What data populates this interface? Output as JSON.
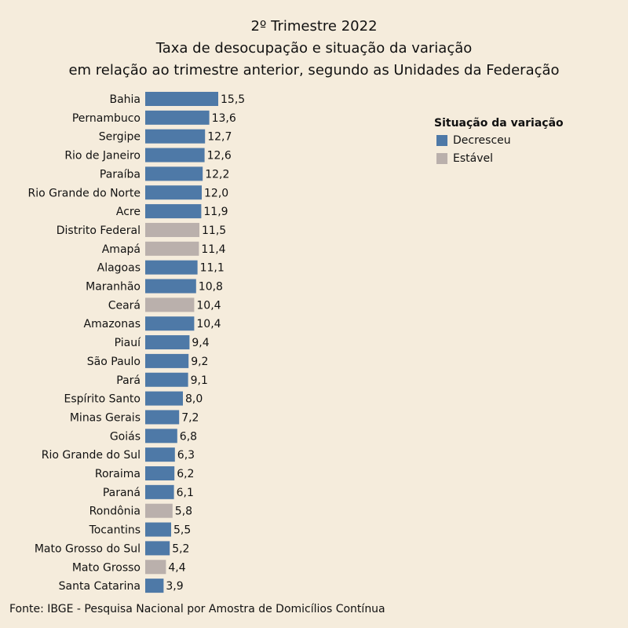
{
  "chart_data": {
    "type": "bar",
    "orientation": "horizontal",
    "title": "2º Trimestre 2022",
    "subtitle_lines": [
      "Taxa de desocupação e situação da variação",
      "em relação ao trimestre anterior, segundo as Unidades da Federação"
    ],
    "categories": [
      "Bahia",
      "Pernambuco",
      "Sergipe",
      "Rio de Janeiro",
      "Paraíba",
      "Rio Grande do Norte",
      "Acre",
      "Distrito Federal",
      "Amapá",
      "Alagoas",
      "Maranhão",
      "Ceará",
      "Amazonas",
      "Piauí",
      "São Paulo",
      "Pará",
      "Espírito Santo",
      "Minas Gerais",
      "Goiás",
      "Rio Grande do Sul",
      "Roraima",
      "Paraná",
      "Rondônia",
      "Tocantins",
      "Mato Grosso do Sul",
      "Mato Grosso",
      "Santa Catarina"
    ],
    "values": [
      15.5,
      13.6,
      12.7,
      12.6,
      12.2,
      12.0,
      11.9,
      11.5,
      11.4,
      11.1,
      10.8,
      10.4,
      10.4,
      9.4,
      9.2,
      9.1,
      8.0,
      7.2,
      6.8,
      6.3,
      6.2,
      6.1,
      5.8,
      5.5,
      5.2,
      4.4,
      3.9
    ],
    "labels": [
      "15,5",
      "13,6",
      "12,7",
      "12,6",
      "12,2",
      "12,0",
      "11,9",
      "11,5",
      "11,4",
      "11,1",
      "10,8",
      "10,4",
      "10,4",
      "9,4",
      "9,2",
      "9,1",
      "8,0",
      "7,2",
      "6,8",
      "6,3",
      "6,2",
      "6,1",
      "5,8",
      "5,5",
      "5,2",
      "4,4",
      "3,9"
    ],
    "status": [
      "Decresceu",
      "Decresceu",
      "Decresceu",
      "Decresceu",
      "Decresceu",
      "Decresceu",
      "Decresceu",
      "Estável",
      "Estável",
      "Decresceu",
      "Decresceu",
      "Estável",
      "Decresceu",
      "Decresceu",
      "Decresceu",
      "Decresceu",
      "Decresceu",
      "Decresceu",
      "Decresceu",
      "Decresceu",
      "Decresceu",
      "Decresceu",
      "Estável",
      "Decresceu",
      "Decresceu",
      "Estável",
      "Decresceu"
    ],
    "legend": {
      "title": "Situação da variação",
      "placement": "top-right",
      "items": [
        {
          "label": "Decresceu",
          "color": "#4e79a7"
        },
        {
          "label": "Estável",
          "color": "#bab0ac"
        }
      ]
    },
    "grid": false,
    "xaxis_visible": false,
    "source": "Fonte: IBGE - Pesquisa Nacional por Amostra de Domicílios Contínua"
  },
  "colors": {
    "background": "#f5ecdc",
    "Decresceu": "#4e79a7",
    "Estável": "#bab0ac"
  }
}
